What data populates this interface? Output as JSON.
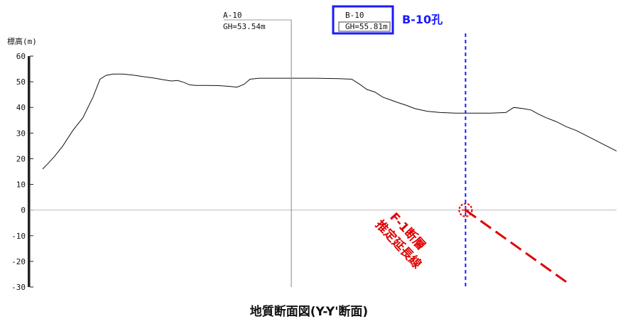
{
  "chart_data": {
    "type": "line",
    "ylabel": "標高(m)",
    "ylim": [
      -30,
      60
    ],
    "y_ticks": [
      "60",
      "50",
      "40",
      "30",
      "20",
      "10",
      "0",
      "-10",
      "-20",
      "-30"
    ],
    "series": [
      {
        "values": [
          [
            0,
            16
          ],
          [
            5,
            18
          ],
          [
            12,
            21
          ],
          [
            20,
            25
          ],
          [
            30,
            31
          ],
          [
            40,
            36
          ],
          [
            50,
            44
          ],
          [
            57,
            51
          ],
          [
            63,
            52.5
          ],
          [
            70,
            53
          ],
          [
            80,
            53
          ],
          [
            90,
            52.6
          ],
          [
            100,
            52
          ],
          [
            110,
            51.5
          ],
          [
            120,
            50.8
          ],
          [
            128,
            50.3
          ],
          [
            134,
            50.5
          ],
          [
            140,
            49.8
          ],
          [
            146,
            48.8
          ],
          [
            152,
            48.6
          ],
          [
            162,
            48.6
          ],
          [
            175,
            48.5
          ],
          [
            186,
            48.2
          ],
          [
            193,
            47.9
          ],
          [
            200,
            49
          ],
          [
            206,
            51
          ],
          [
            215,
            51.4
          ],
          [
            240,
            51.4
          ],
          [
            270,
            51.4
          ],
          [
            295,
            51.2
          ],
          [
            307,
            51
          ],
          [
            315,
            49
          ],
          [
            322,
            47
          ],
          [
            330,
            46
          ],
          [
            338,
            44
          ],
          [
            345,
            43
          ],
          [
            352,
            42
          ],
          [
            360,
            41
          ],
          [
            370,
            39.5
          ],
          [
            382,
            38.5
          ],
          [
            395,
            38
          ],
          [
            410,
            37.8
          ],
          [
            425,
            37.8
          ],
          [
            445,
            37.8
          ],
          [
            460,
            38
          ],
          [
            468,
            40
          ],
          [
            478,
            39.5
          ],
          [
            485,
            39
          ],
          [
            492,
            37.5
          ],
          [
            500,
            36
          ],
          [
            510,
            34.5
          ],
          [
            520,
            32.5
          ],
          [
            530,
            31
          ],
          [
            545,
            28
          ],
          [
            560,
            25
          ],
          [
            570,
            23
          ]
        ]
      }
    ],
    "boreholes": [
      {
        "name": "A-10",
        "gh": "GH=53.54m",
        "x": 247,
        "color": "#888888"
      },
      {
        "name": "B-10",
        "gh": "GH=55.81m",
        "x": 420,
        "color": "#1a1aff",
        "callout": "B-10孔"
      }
    ],
    "fault_line": {
      "label_line1": "F-1断層",
      "label_line2": "推定延長線",
      "color": "#e00000",
      "from": [
        420,
        0
      ],
      "to": [
        520,
        -28
      ]
    }
  },
  "caption": "地質断面図(Y-Y'断面)"
}
